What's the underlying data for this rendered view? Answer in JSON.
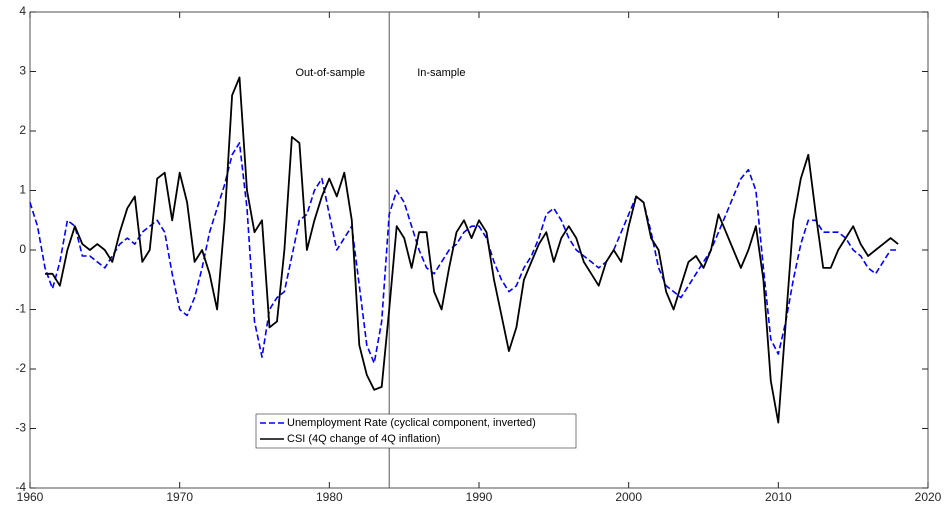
{
  "chart_data": {
    "type": "line",
    "x": [
      1960,
      1960.5,
      1961,
      1961.5,
      1962,
      1962.5,
      1963,
      1963.5,
      1964,
      1964.5,
      1965,
      1965.5,
      1966,
      1966.5,
      1967,
      1967.5,
      1968,
      1968.5,
      1969,
      1969.5,
      1970,
      1970.5,
      1971,
      1971.5,
      1972,
      1972.5,
      1973,
      1973.5,
      1974,
      1974.5,
      1975,
      1975.5,
      1976,
      1976.5,
      1977,
      1977.5,
      1978,
      1978.5,
      1979,
      1979.5,
      1980,
      1980.5,
      1981,
      1981.5,
      1982,
      1982.5,
      1983,
      1983.5,
      1984,
      1984.5,
      1985,
      1985.5,
      1986,
      1986.5,
      1987,
      1987.5,
      1988,
      1988.5,
      1989,
      1989.5,
      1990,
      1990.5,
      1991,
      1991.5,
      1992,
      1992.5,
      1993,
      1993.5,
      1994,
      1994.5,
      1995,
      1995.5,
      1996,
      1996.5,
      1997,
      1997.5,
      1998,
      1998.5,
      1999,
      1999.5,
      2000,
      2000.5,
      2001,
      2001.5,
      2002,
      2002.5,
      2003,
      2003.5,
      2004,
      2004.5,
      2005,
      2005.5,
      2006,
      2006.5,
      2007,
      2007.5,
      2008,
      2008.5,
      2009,
      2009.5,
      2010,
      2010.5,
      2011,
      2011.5,
      2012,
      2012.5,
      2013,
      2013.5,
      2014,
      2014.5,
      2015,
      2015.5,
      2016,
      2016.5,
      2017,
      2017.5,
      2018
    ],
    "series": [
      {
        "name": "Unemployment Rate (cyclical component, inverted)",
        "color": "#0000ff",
        "dashed": true,
        "values": [
          0.8,
          0.4,
          -0.3,
          -0.65,
          -0.2,
          0.5,
          0.4,
          -0.1,
          -0.1,
          -0.2,
          -0.3,
          -0.1,
          0.1,
          0.2,
          0.1,
          0.3,
          0.4,
          0.5,
          0.3,
          -0.4,
          -1.0,
          -1.1,
          -0.8,
          -0.3,
          0.3,
          0.7,
          1.1,
          1.6,
          1.8,
          0.7,
          -1.2,
          -1.8,
          -1.0,
          -0.8,
          -0.7,
          -0.1,
          0.5,
          0.6,
          1.0,
          1.2,
          0.6,
          0.0,
          0.2,
          0.4,
          -0.6,
          -1.6,
          -1.9,
          -1.2,
          0.6,
          1.0,
          0.8,
          0.4,
          0.0,
          -0.3,
          -0.4,
          -0.2,
          0.0,
          0.1,
          0.3,
          0.4,
          0.4,
          0.2,
          -0.2,
          -0.5,
          -0.7,
          -0.6,
          -0.3,
          -0.1,
          0.2,
          0.6,
          0.7,
          0.5,
          0.2,
          0.0,
          -0.1,
          -0.2,
          -0.3,
          -0.2,
          0.0,
          0.3,
          0.6,
          0.9,
          0.8,
          0.3,
          -0.3,
          -0.6,
          -0.7,
          -0.8,
          -0.6,
          -0.4,
          -0.2,
          0.0,
          0.3,
          0.6,
          0.9,
          1.2,
          1.35,
          1.0,
          -0.3,
          -1.5,
          -1.75,
          -1.2,
          -0.5,
          0.1,
          0.5,
          0.5,
          0.3,
          0.3,
          0.3,
          0.2,
          0.0,
          -0.1,
          -0.3,
          -0.4,
          -0.2,
          0.0,
          0.0
        ]
      },
      {
        "name": "CSI (4Q change of 4Q inflation)",
        "color": "#000000",
        "dashed": false,
        "values": [
          null,
          null,
          -0.4,
          -0.4,
          -0.6,
          0.0,
          0.4,
          0.1,
          0.0,
          0.1,
          0.0,
          -0.2,
          0.3,
          0.7,
          0.9,
          -0.2,
          0.0,
          1.2,
          1.3,
          0.5,
          1.3,
          0.8,
          -0.2,
          0.0,
          -0.4,
          -1.0,
          0.5,
          2.6,
          2.9,
          1.0,
          0.3,
          0.5,
          -1.3,
          -1.2,
          0.0,
          1.9,
          1.8,
          0.0,
          0.5,
          0.9,
          1.2,
          0.9,
          1.3,
          0.5,
          -1.6,
          -2.1,
          -2.35,
          -2.3,
          -1.0,
          0.4,
          0.2,
          -0.3,
          0.3,
          0.3,
          -0.7,
          -1.0,
          -0.3,
          0.3,
          0.5,
          0.2,
          0.5,
          0.3,
          -0.5,
          -1.1,
          -1.7,
          -1.3,
          -0.5,
          -0.2,
          0.1,
          0.3,
          -0.2,
          0.2,
          0.4,
          0.2,
          -0.2,
          -0.4,
          -0.6,
          -0.2,
          0.0,
          -0.2,
          0.4,
          0.9,
          0.8,
          0.2,
          0.0,
          -0.7,
          -1.0,
          -0.6,
          -0.2,
          -0.1,
          -0.3,
          0.0,
          0.6,
          0.3,
          0.0,
          -0.3,
          0.0,
          0.4,
          -0.5,
          -2.2,
          -2.9,
          -1.2,
          0.5,
          1.2,
          1.6,
          0.6,
          -0.3,
          -0.3,
          0.0,
          0.2,
          0.4,
          0.1,
          -0.1,
          0.0,
          0.1,
          0.2,
          0.1
        ]
      }
    ],
    "xlim": [
      1960,
      2020
    ],
    "xticks": [
      1960,
      1970,
      1980,
      1990,
      2000,
      2010,
      2020
    ],
    "ylim": [
      -4,
      4
    ],
    "yticks": [
      -4,
      -3,
      -2,
      -1,
      0,
      1,
      2,
      3,
      4
    ],
    "vline": 1984,
    "annotations": [
      "Out-of-sample",
      "In-sample"
    ],
    "legend": "lower center"
  }
}
